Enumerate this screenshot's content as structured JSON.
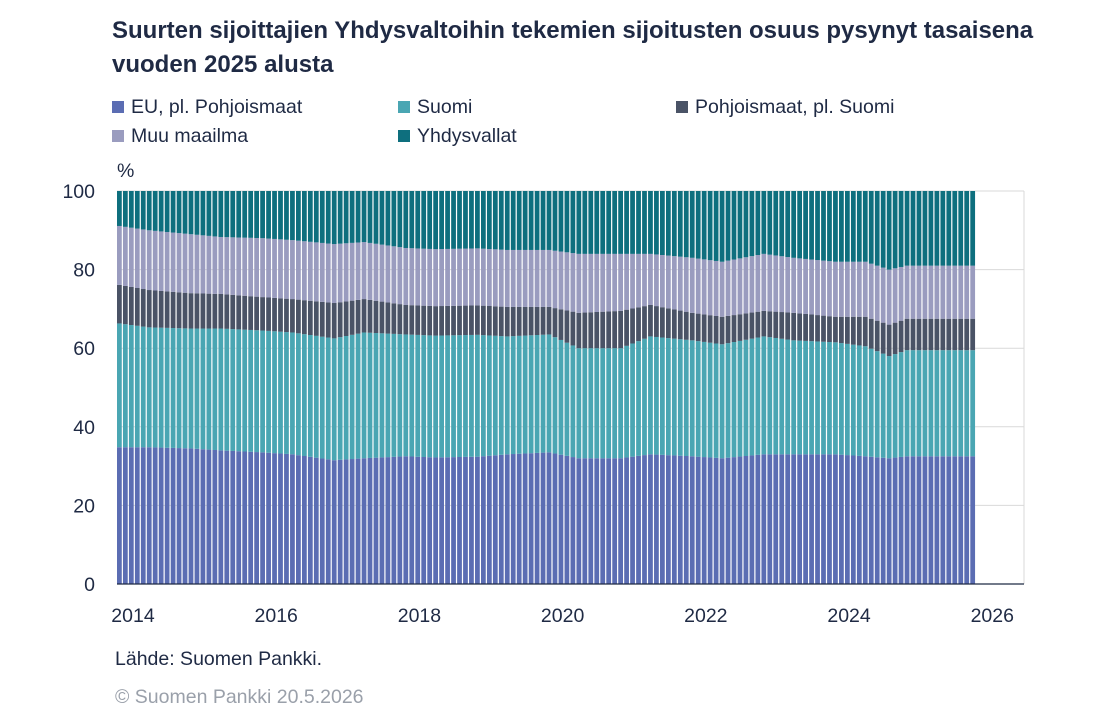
{
  "title": "Suurten sijoittajien Yhdysvaltoihin tekemien sijoitusten osuus pysynyt tasaisena vuoden 2025 alusta",
  "unit_label": "%",
  "source": "Lähde: Suomen Pankki.",
  "copyright": "© Suomen Pankki 20.5.2026",
  "legend": [
    {
      "label": "EU, pl. Pohjoismaat",
      "color": "#5b6db3"
    },
    {
      "label": "Suomi",
      "color": "#4aa6b3"
    },
    {
      "label": "Pohjoismaat, pl. Suomi",
      "color": "#4a5366"
    },
    {
      "label": "Muu maailma",
      "color": "#9a9cbf"
    },
    {
      "label": "Yhdysvallat",
      "color": "#0e6f7e"
    }
  ],
  "chart_data": {
    "type": "bar",
    "stacked": true,
    "frequency": "monthly",
    "x_start": "2014-01",
    "x_end": "2025-12",
    "x_ticks": [
      "2014",
      "2016",
      "2018",
      "2020",
      "2022",
      "2024",
      "2026"
    ],
    "y_ticks": [
      "0",
      "20",
      "40",
      "60",
      "80",
      "100"
    ],
    "ylim": [
      0,
      100
    ],
    "xlim": [
      "2014-01",
      "2026-09"
    ],
    "grid": true,
    "legend_position": "top",
    "series": [
      {
        "name": "EU, pl. Pohjoismaat",
        "color": "#5b6db3",
        "anchors": [
          [
            "2014-01",
            34.8
          ],
          [
            "2014-06",
            34.8
          ],
          [
            "2015-01",
            34.5
          ],
          [
            "2015-06",
            34.0
          ],
          [
            "2016-01",
            33.5
          ],
          [
            "2016-06",
            33.0
          ],
          [
            "2017-01",
            31.5
          ],
          [
            "2017-06",
            32.0
          ],
          [
            "2018-01",
            32.5
          ],
          [
            "2018-06",
            32.2
          ],
          [
            "2019-01",
            32.4
          ],
          [
            "2019-06",
            33.0
          ],
          [
            "2020-01",
            33.5
          ],
          [
            "2020-06",
            32.0
          ],
          [
            "2021-01",
            32.0
          ],
          [
            "2021-06",
            33.0
          ],
          [
            "2022-01",
            32.5
          ],
          [
            "2022-06",
            32.0
          ],
          [
            "2023-01",
            33.0
          ],
          [
            "2023-06",
            33.0
          ],
          [
            "2024-01",
            33.0
          ],
          [
            "2024-06",
            32.5
          ],
          [
            "2024-10",
            32.0
          ],
          [
            "2025-01",
            32.5
          ],
          [
            "2025-06",
            32.5
          ],
          [
            "2025-12",
            32.5
          ]
        ]
      },
      {
        "name": "Suomi",
        "color": "#4aa6b3",
        "anchors": [
          [
            "2014-01",
            31.5
          ],
          [
            "2014-06",
            30.5
          ],
          [
            "2015-01",
            30.5
          ],
          [
            "2015-06",
            31.0
          ],
          [
            "2016-01",
            31.0
          ],
          [
            "2016-06",
            31.0
          ],
          [
            "2017-01",
            31.0
          ],
          [
            "2017-06",
            32.0
          ],
          [
            "2018-01",
            31.0
          ],
          [
            "2018-06",
            31.0
          ],
          [
            "2019-01",
            31.0
          ],
          [
            "2019-06",
            30.0
          ],
          [
            "2020-01",
            30.0
          ],
          [
            "2020-06",
            28.0
          ],
          [
            "2021-01",
            28.0
          ],
          [
            "2021-06",
            30.0
          ],
          [
            "2022-01",
            29.5
          ],
          [
            "2022-06",
            29.0
          ],
          [
            "2023-01",
            30.0
          ],
          [
            "2023-06",
            29.0
          ],
          [
            "2024-01",
            28.5
          ],
          [
            "2024-06",
            28.0
          ],
          [
            "2024-10",
            26.0
          ],
          [
            "2025-01",
            27.0
          ],
          [
            "2025-06",
            27.0
          ],
          [
            "2025-12",
            27.0
          ]
        ]
      },
      {
        "name": "Pohjoismaat, pl. Suomi",
        "color": "#4a5366",
        "anchors": [
          [
            "2014-01",
            9.8
          ],
          [
            "2014-06",
            9.5
          ],
          [
            "2015-01",
            9.0
          ],
          [
            "2015-06",
            8.8
          ],
          [
            "2016-01",
            8.5
          ],
          [
            "2016-06",
            8.5
          ],
          [
            "2017-01",
            9.0
          ],
          [
            "2017-06",
            8.5
          ],
          [
            "2018-01",
            7.5
          ],
          [
            "2018-06",
            7.5
          ],
          [
            "2019-01",
            7.5
          ],
          [
            "2019-06",
            7.5
          ],
          [
            "2020-01",
            7.0
          ],
          [
            "2020-06",
            9.0
          ],
          [
            "2021-01",
            9.5
          ],
          [
            "2021-06",
            8.0
          ],
          [
            "2022-01",
            7.0
          ],
          [
            "2022-06",
            7.0
          ],
          [
            "2023-01",
            6.5
          ],
          [
            "2023-06",
            7.0
          ],
          [
            "2024-01",
            6.5
          ],
          [
            "2024-06",
            7.5
          ],
          [
            "2024-10",
            8.0
          ],
          [
            "2025-01",
            8.0
          ],
          [
            "2025-06",
            8.0
          ],
          [
            "2025-12",
            8.0
          ]
        ]
      },
      {
        "name": "Muu maailma",
        "color": "#9a9cbf",
        "anchors": [
          [
            "2014-01",
            15.0
          ],
          [
            "2014-06",
            15.2
          ],
          [
            "2015-01",
            15.0
          ],
          [
            "2015-06",
            14.5
          ],
          [
            "2016-01",
            15.0
          ],
          [
            "2016-06",
            15.0
          ],
          [
            "2017-01",
            15.0
          ],
          [
            "2017-06",
            14.5
          ],
          [
            "2018-01",
            14.5
          ],
          [
            "2018-06",
            14.5
          ],
          [
            "2019-01",
            14.5
          ],
          [
            "2019-06",
            14.5
          ],
          [
            "2020-01",
            14.5
          ],
          [
            "2020-06",
            15.0
          ],
          [
            "2021-01",
            14.5
          ],
          [
            "2021-06",
            13.0
          ],
          [
            "2022-01",
            14.0
          ],
          [
            "2022-06",
            14.0
          ],
          [
            "2023-01",
            14.5
          ],
          [
            "2023-06",
            14.0
          ],
          [
            "2024-01",
            14.0
          ],
          [
            "2024-06",
            14.0
          ],
          [
            "2024-10",
            14.0
          ],
          [
            "2025-01",
            13.5
          ],
          [
            "2025-06",
            13.5
          ],
          [
            "2025-12",
            13.5
          ]
        ]
      },
      {
        "name": "Yhdysvallat",
        "color": "#0e6f7e",
        "anchors": [
          [
            "2014-01",
            8.9
          ],
          [
            "2014-06",
            10.0
          ],
          [
            "2015-01",
            11.0
          ],
          [
            "2015-06",
            11.7
          ],
          [
            "2016-01",
            12.0
          ],
          [
            "2016-06",
            12.5
          ],
          [
            "2017-01",
            13.5
          ],
          [
            "2017-06",
            13.0
          ],
          [
            "2018-01",
            14.5
          ],
          [
            "2018-06",
            14.8
          ],
          [
            "2019-01",
            14.6
          ],
          [
            "2019-06",
            15.0
          ],
          [
            "2020-01",
            15.0
          ],
          [
            "2020-06",
            16.0
          ],
          [
            "2021-01",
            16.0
          ],
          [
            "2021-06",
            16.0
          ],
          [
            "2022-01",
            17.0
          ],
          [
            "2022-06",
            18.0
          ],
          [
            "2023-01",
            16.0
          ],
          [
            "2023-06",
            17.0
          ],
          [
            "2024-01",
            18.0
          ],
          [
            "2024-06",
            18.0
          ],
          [
            "2024-10",
            20.0
          ],
          [
            "2025-01",
            19.0
          ],
          [
            "2025-06",
            19.0
          ],
          [
            "2025-12",
            19.0
          ]
        ]
      }
    ]
  }
}
